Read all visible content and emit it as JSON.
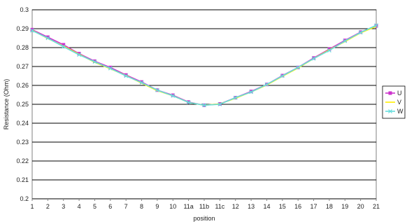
{
  "chart_data": {
    "type": "line",
    "title": "",
    "xlabel": "position",
    "ylabel": "Resistance (Ohm)",
    "categories": [
      "1",
      "2",
      "3",
      "4",
      "5",
      "6",
      "7",
      "8",
      "9",
      "10",
      "11a",
      "11b",
      "11c",
      "12",
      "13",
      "14",
      "15",
      "16",
      "17",
      "18",
      "19",
      "20",
      "21"
    ],
    "ylim": [
      0.2,
      0.3
    ],
    "yticks": [
      "0.2",
      "0.21",
      "0.22",
      "0.23",
      "0.24",
      "0.25",
      "0.26",
      "0.27",
      "0.28",
      "0.29",
      "0.3"
    ],
    "grid": "horizontal",
    "legend_position": "right",
    "series": [
      {
        "name": "U",
        "color": "#cc33cc",
        "marker": "square",
        "values": [
          0.2895,
          0.2855,
          0.2815,
          0.2768,
          0.2728,
          0.2695,
          0.2655,
          0.2618,
          0.2575,
          0.2548,
          0.2512,
          0.2495,
          0.2502,
          0.2535,
          0.2568,
          0.2605,
          0.2652,
          0.2695,
          0.2745,
          0.2792,
          0.2838,
          0.2882,
          0.2915
        ]
      },
      {
        "name": "V",
        "color": "#ffee00",
        "marker": "none",
        "values": [
          0.2892,
          0.2848,
          0.2808,
          0.2765,
          0.2722,
          0.2688,
          0.2652,
          0.2612,
          0.2572,
          0.2545,
          0.251,
          0.2495,
          0.2502,
          0.2532,
          0.2565,
          0.2602,
          0.2648,
          0.2692,
          0.2742,
          0.2788,
          0.2832,
          0.2878,
          0.2912
        ]
      },
      {
        "name": "W",
        "color": "#66dddd",
        "marker": "x",
        "values": [
          0.289,
          0.285,
          0.2805,
          0.2762,
          0.2725,
          0.269,
          0.265,
          0.2615,
          0.2575,
          0.2545,
          0.251,
          0.2495,
          0.25,
          0.2535,
          0.2565,
          0.2605,
          0.265,
          0.2695,
          0.2742,
          0.2785,
          0.2835,
          0.288,
          0.2918
        ]
      }
    ]
  }
}
